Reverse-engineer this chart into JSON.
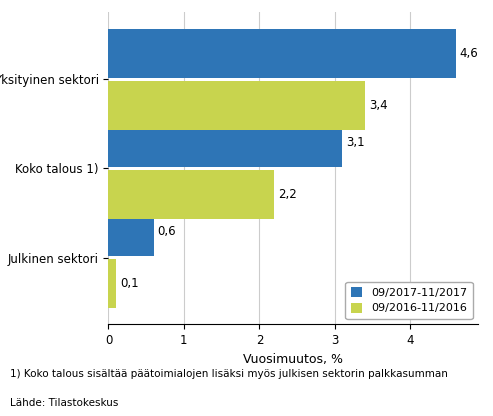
{
  "categories": [
    "Julkinen sektori",
    "Koko talous 1)",
    "Yksityinen sektori"
  ],
  "series_2017": [
    0.6,
    3.1,
    4.6
  ],
  "series_2016": [
    0.1,
    2.2,
    3.4
  ],
  "color_2017": "#2e75b6",
  "color_2016": "#c8d44e",
  "legend_2017": "09/2017-11/2017",
  "legend_2016": "09/2016-11/2016",
  "xlabel": "Vuosimuutos, %",
  "xlim": [
    0,
    4.9
  ],
  "xticks": [
    0,
    1,
    2,
    3,
    4
  ],
  "footnote1": "1) Koko talous sisältää päätoimialojen lisäksi myös julkisen sektorin palkkasumman",
  "footnote2": "Lähde: Tilastokeskus",
  "bar_height": 0.55,
  "label_fontsize": 8.5,
  "tick_fontsize": 8.5,
  "xlabel_fontsize": 9,
  "footnote_fontsize": 7.5,
  "legend_fontsize": 8,
  "background_color": "#ffffff"
}
